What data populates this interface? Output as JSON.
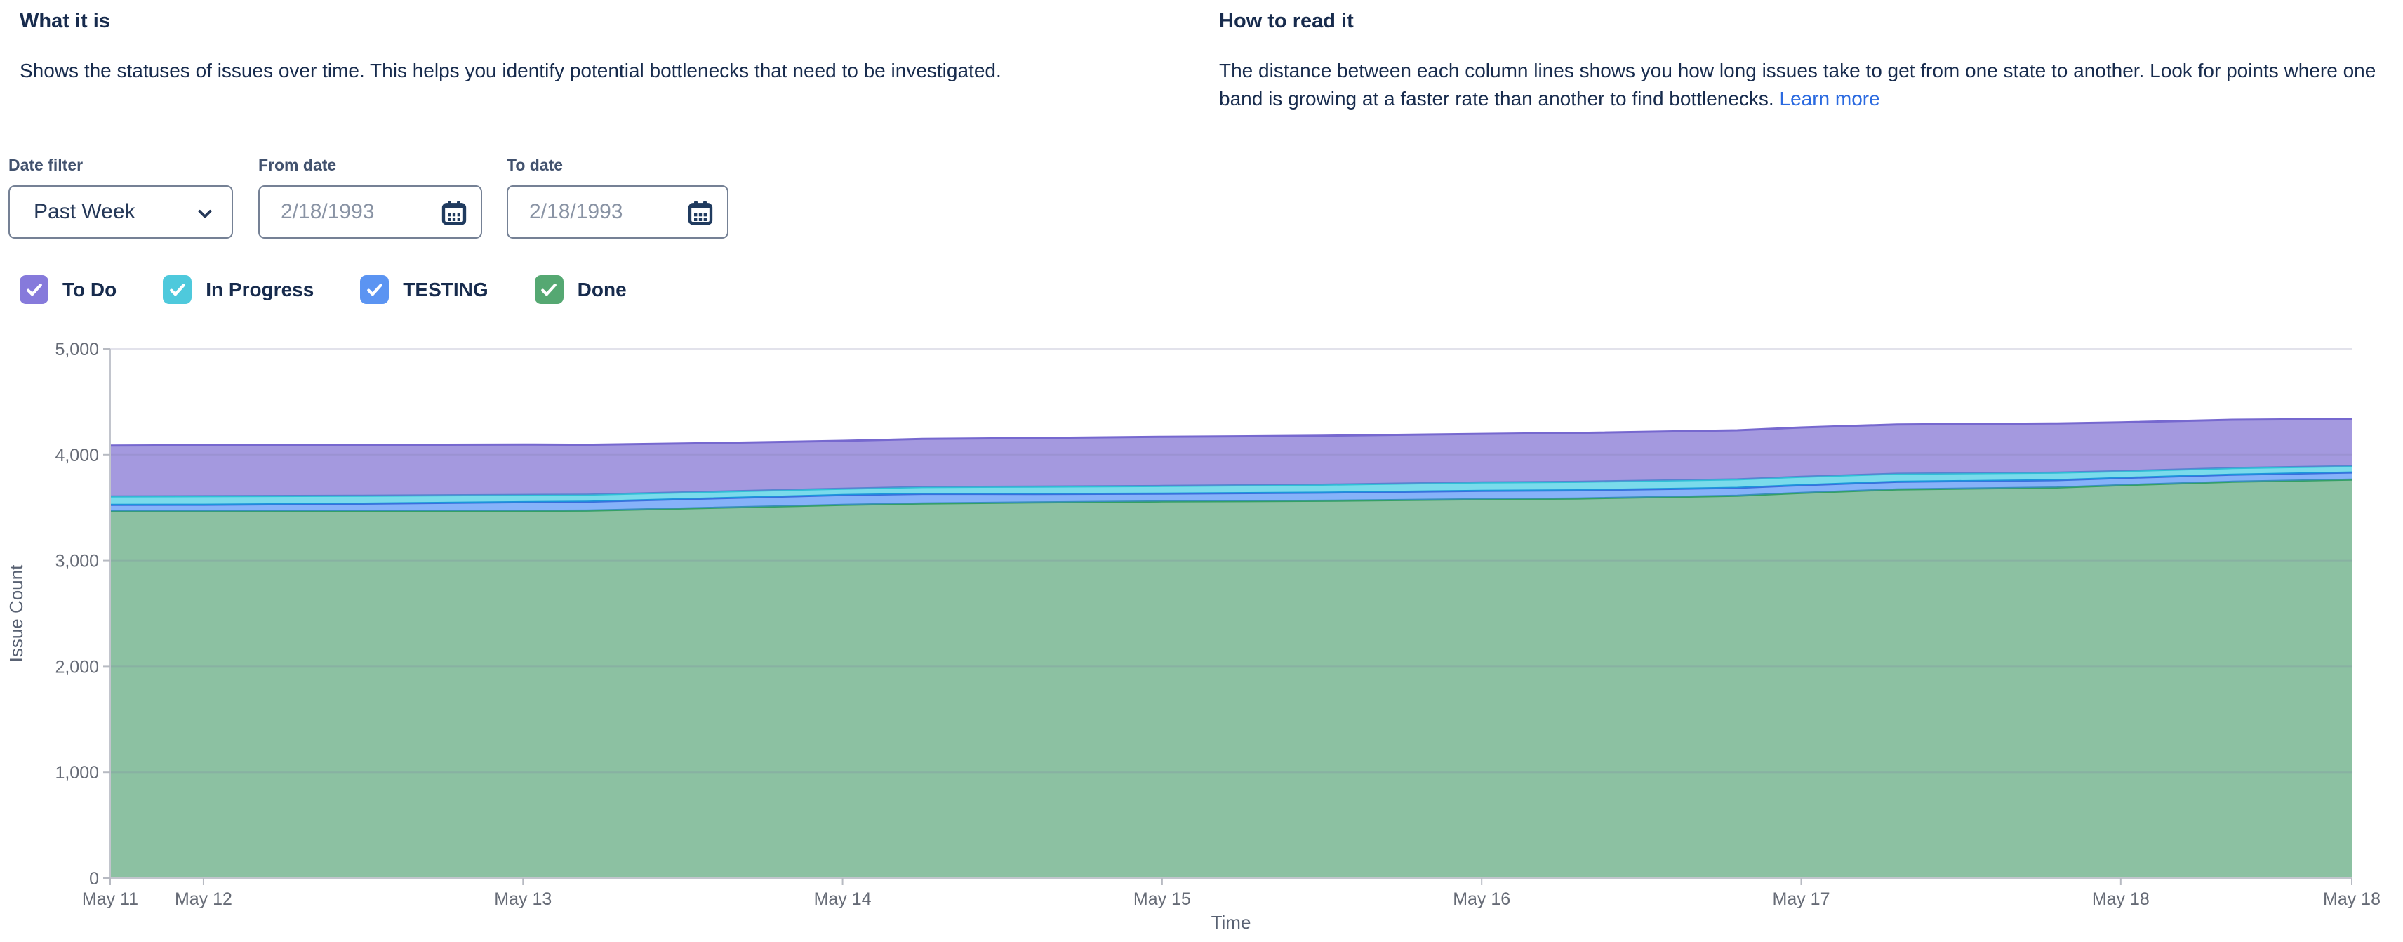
{
  "header": {
    "left": {
      "title": "What it is",
      "body": "Shows the statuses of issues over time. This helps you identify potential bottlenecks that need to be investigated."
    },
    "right": {
      "title": "How to read it",
      "body": "The distance between each column lines shows you how long issues take to get from one state to another. Look for points where one band is growing at a faster rate than another to find bottlenecks.",
      "link_label": "Learn more"
    }
  },
  "filters": {
    "date_filter": {
      "label": "Date filter",
      "value": "Past Week"
    },
    "from_date": {
      "label": "From date",
      "value": "2/18/1993"
    },
    "to_date": {
      "label": "To date",
      "value": "2/18/1993"
    }
  },
  "legend": {
    "items": [
      {
        "label": "To Do",
        "checked": true,
        "color": "#867ADB"
      },
      {
        "label": "In Progress",
        "checked": true,
        "color": "#4EC9DC"
      },
      {
        "label": "TESTING",
        "checked": true,
        "color": "#5B94F2"
      },
      {
        "label": "Done",
        "checked": true,
        "color": "#55A872"
      }
    ]
  },
  "chart_data": {
    "type": "area",
    "stacked": true,
    "title": "",
    "xlabel": "Time",
    "ylabel": "Issue Count",
    "ylim": [
      0,
      5000
    ],
    "yticks": [
      0,
      1000,
      2000,
      3000,
      4000,
      5000
    ],
    "grid": true,
    "legend_position": "top-checkboxes",
    "x_unit": "day of May (fractional)",
    "x_domain": [
      11.708,
      18.723
    ],
    "x_ticks": [
      {
        "d": 11.708,
        "label": "May 11"
      },
      {
        "d": 12,
        "label": "May 12"
      },
      {
        "d": 13,
        "label": "May 13"
      },
      {
        "d": 14,
        "label": "May 14"
      },
      {
        "d": 15,
        "label": "May 15"
      },
      {
        "d": 16,
        "label": "May 16"
      },
      {
        "d": 17,
        "label": "May 17"
      },
      {
        "d": 18,
        "label": "May 18"
      },
      {
        "d": 18.723,
        "label": "May 18"
      }
    ],
    "x": [
      11.708,
      12,
      12.5,
      13,
      13.2,
      13.5,
      14,
      14.25,
      14.6,
      15,
      15.5,
      16,
      16.3,
      16.8,
      17,
      17.3,
      17.8,
      18,
      18.35,
      18.723
    ],
    "series": [
      {
        "name": "Done",
        "fill": "rgba(56,148,94,0.58)",
        "stroke": "#35a065",
        "values": [
          3466,
          3467,
          3468,
          3470,
          3472,
          3492,
          3526,
          3540,
          3549,
          3559,
          3565,
          3579,
          3586,
          3612,
          3639,
          3672,
          3690,
          3712,
          3745,
          3765
        ]
      },
      {
        "name": "TESTING",
        "fill": "rgba(59,130,246,0.62)",
        "stroke": "#3a6fdd",
        "values": [
          60,
          60,
          70,
          82,
          84,
          88,
          93,
          90,
          80,
          73,
          76,
          80,
          78,
          75,
          73,
          72,
          70,
          68,
          67,
          67
        ]
      },
      {
        "name": "In Progress",
        "fill": "rgba(0,186,217,0.52)",
        "stroke": "#2fc0d6",
        "values": [
          80,
          81,
          75,
          68,
          66,
          64,
          60,
          64,
          70,
          73,
          76,
          79,
          80,
          80,
          80,
          76,
          71,
          65,
          62,
          60
        ]
      },
      {
        "name": "To Do",
        "fill": "rgba(113,95,205,0.64)",
        "stroke": "#7668cf",
        "values": [
          480,
          482,
          480,
          477,
          472,
          462,
          452,
          455,
          459,
          465,
          462,
          459,
          462,
          464,
          465,
          466,
          465,
          460,
          456,
          446
        ]
      }
    ]
  }
}
